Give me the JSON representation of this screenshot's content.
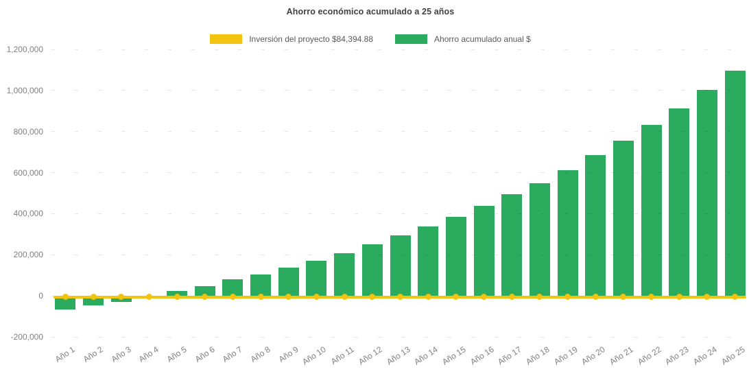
{
  "title": "Ahorro económico acumulado a 25 años",
  "legend": {
    "investment": {
      "label": "Inversión del proyecto $84,394.88",
      "color": "#F2C40F"
    },
    "savings": {
      "label": "Ahorro acumulado anual $",
      "color": "#2BAB5D"
    }
  },
  "colors": {
    "bar_green": "#2BAB5D",
    "line_yellow": "#F2C40F",
    "title_text": "#404040",
    "axis_text": "#808080",
    "legend_text": "#595959",
    "background": "#FFFFFF"
  },
  "chart_data": {
    "type": "bar",
    "title": "Ahorro económico acumulado a 25 años",
    "categories": [
      "Año 1",
      "Año 2",
      "Año 3",
      "Año 4",
      "Año 5",
      "Año 6",
      "Año 7",
      "Año 8",
      "Año 9",
      "Año 10",
      "Año 11",
      "Año 12",
      "Año 13",
      "Año 14",
      "Año 15",
      "Año 16",
      "Año 17",
      "Año 18",
      "Año 19",
      "Año 20",
      "Año 21",
      "Año 22",
      "Año 23",
      "Año 24",
      "Año 25"
    ],
    "series": [
      {
        "name": "Ahorro acumulado anual $",
        "type": "bar",
        "color": "#2BAB5D",
        "values": [
          -67000,
          -47000,
          -30000,
          -5000,
          23000,
          48000,
          80000,
          104000,
          138000,
          170000,
          207000,
          250000,
          295000,
          337000,
          386000,
          437000,
          495000,
          550000,
          612000,
          687000,
          754000,
          833000,
          913000,
          1002000,
          1097000
        ]
      },
      {
        "name": "Inversión del proyecto $84,394.88",
        "type": "line",
        "color": "#F2C40F",
        "values": [
          0,
          0,
          0,
          0,
          0,
          0,
          0,
          0,
          0,
          0,
          0,
          0,
          0,
          0,
          0,
          0,
          0,
          0,
          0,
          0,
          0,
          0,
          0,
          0,
          0
        ]
      }
    ],
    "xlabel": "",
    "ylabel": "",
    "ylim": [
      -200000,
      1200000
    ],
    "yticks": [
      1200000,
      1000000,
      800000,
      600000,
      400000,
      200000,
      0,
      -200000
    ],
    "ytick_labels": [
      "1,200,000",
      "1,000,000",
      "800,000",
      "600,000",
      "400,000",
      "200,000",
      "0",
      "-200,000"
    ],
    "grid": "faint horizontal",
    "legend_position": "top-center"
  }
}
